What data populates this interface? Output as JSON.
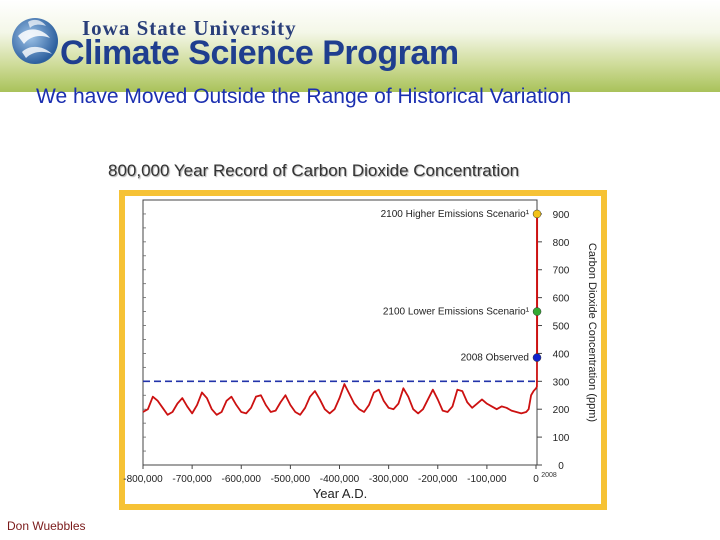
{
  "header": {
    "university": "Iowa State University",
    "program": "Climate Science Program",
    "logo_icon": "globe-swirl-icon",
    "accent_color": "#1f3e8f",
    "band_color": "#a9c25a"
  },
  "slide": {
    "title": "We have Moved Outside the Range of Historical Variation",
    "author": "Don Wuebbles"
  },
  "chart_data": {
    "type": "line",
    "title": "800,000 Year Record of Carbon Dioxide Concentration",
    "xlabel": "Year A.D.",
    "ylabel": "Carbon Dioxide Concentration (ppm)",
    "xlim": [
      -800000,
      2008
    ],
    "ylim": [
      0,
      950
    ],
    "x_ticks": [
      -800000,
      -700000,
      -600000,
      -500000,
      -400000,
      -300000,
      -200000,
      -100000,
      0
    ],
    "x_tick_labels": [
      "-800,000",
      "-700,000",
      "-600,000",
      "-500,000",
      "-400,000",
      "-300,000",
      "-200,000",
      "-100,000",
      "0"
    ],
    "y_ticks": [
      0,
      100,
      200,
      300,
      400,
      500,
      600,
      700,
      800,
      900
    ],
    "y_tick_labels": [
      "0",
      "100",
      "200",
      "300",
      "400",
      "500",
      "600",
      "700",
      "800",
      "900"
    ],
    "y_axis_side": "right",
    "x_end_label": "2008",
    "reference_line": {
      "y": 300,
      "style": "dashed",
      "color": "#2233aa"
    },
    "series": [
      {
        "color": "#cc1111",
        "x": [
          -800000,
          -790000,
          -780000,
          -770000,
          -760000,
          -750000,
          -740000,
          -730000,
          -720000,
          -710000,
          -700000,
          -690000,
          -680000,
          -670000,
          -660000,
          -650000,
          -640000,
          -630000,
          -620000,
          -610000,
          -600000,
          -590000,
          -580000,
          -570000,
          -560000,
          -550000,
          -540000,
          -530000,
          -520000,
          -510000,
          -500000,
          -490000,
          -480000,
          -470000,
          -460000,
          -450000,
          -440000,
          -430000,
          -420000,
          -410000,
          -400000,
          -390000,
          -380000,
          -370000,
          -360000,
          -350000,
          -340000,
          -330000,
          -320000,
          -310000,
          -300000,
          -290000,
          -280000,
          -270000,
          -260000,
          -250000,
          -240000,
          -230000,
          -220000,
          -210000,
          -200000,
          -190000,
          -180000,
          -170000,
          -160000,
          -150000,
          -140000,
          -130000,
          -120000,
          -110000,
          -100000,
          -90000,
          -80000,
          -70000,
          -60000,
          -50000,
          -40000,
          -30000,
          -20000,
          -15000,
          -10000,
          -5000,
          0,
          1000,
          1800,
          1900,
          1950,
          2008
        ],
        "y": [
          190,
          200,
          245,
          230,
          205,
          180,
          190,
          220,
          240,
          210,
          185,
          215,
          260,
          240,
          200,
          180,
          190,
          230,
          245,
          215,
          190,
          185,
          205,
          245,
          250,
          215,
          190,
          195,
          225,
          250,
          215,
          190,
          180,
          205,
          245,
          265,
          235,
          200,
          185,
          200,
          240,
          290,
          255,
          220,
          200,
          190,
          215,
          260,
          270,
          230,
          205,
          200,
          220,
          275,
          245,
          200,
          185,
          200,
          235,
          270,
          235,
          195,
          190,
          210,
          270,
          265,
          225,
          205,
          220,
          235,
          220,
          210,
          200,
          210,
          205,
          195,
          190,
          185,
          190,
          200,
          250,
          265,
          275,
          278,
          280,
          296,
          310,
          385
        ]
      }
    ],
    "annotations": [
      {
        "label": "2100 Higher Emissions Scenario¹",
        "x": 2100,
        "y": 900,
        "color": "#f2c218"
      },
      {
        "label": "2100 Lower Emissions Scenario¹",
        "x": 2100,
        "y": 550,
        "color": "#33aa33"
      },
      {
        "label": "2008 Observed",
        "x": 2008,
        "y": 385,
        "color": "#1122cc"
      }
    ]
  }
}
